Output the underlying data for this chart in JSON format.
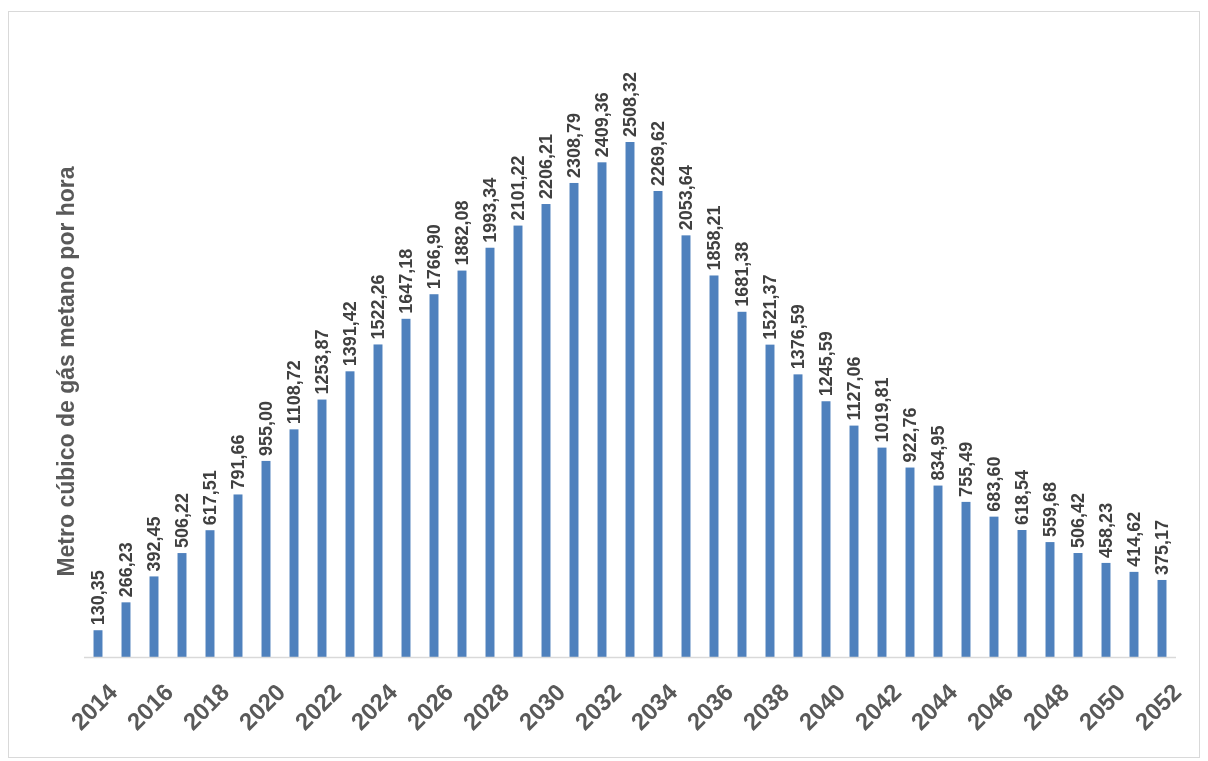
{
  "chart_data": {
    "type": "bar",
    "ylabel": "Metro cúbico de gás metano por hora",
    "categories": [
      "2014",
      null,
      "2016",
      null,
      "2018",
      null,
      "2020",
      null,
      "2022",
      null,
      "2024",
      null,
      "2026",
      null,
      "2028",
      null,
      "2030",
      null,
      "2032",
      null,
      "2034",
      null,
      "2036",
      null,
      "2038",
      null,
      "2040",
      null,
      "2042",
      null,
      "2044",
      null,
      "2046",
      null,
      "2048",
      null,
      "2050",
      null,
      "2052"
    ],
    "values": [
      130.35,
      266.23,
      392.45,
      506.22,
      617.51,
      791.66,
      955.0,
      1108.72,
      1253.87,
      1391.42,
      1522.26,
      1647.18,
      1766.9,
      1882.08,
      1993.34,
      2101.22,
      2206.21,
      2308.79,
      2409.36,
      2508.32,
      2269.62,
      2053.64,
      1858.21,
      1681.38,
      1521.37,
      1376.59,
      1245.59,
      1127.06,
      1019.81,
      922.76,
      834.95,
      755.49,
      683.6,
      618.54,
      559.68,
      506.42,
      458.23,
      414.62,
      375.17
    ],
    "value_labels": [
      "130,35",
      "266,23",
      "392,45",
      "506,22",
      "617,51",
      "791,66",
      "955,00",
      "1108,72",
      "1253,87",
      "1391,42",
      "1522,26",
      "1647,18",
      "1766,90",
      "1882,08",
      "1993,34",
      "2101,22",
      "2206,21",
      "2308,79",
      "2409,36",
      "2508,32",
      "2269,62",
      "2053,64",
      "1858,21",
      "1681,38",
      "1521,37",
      "1376,59",
      "1245,59",
      "1127,06",
      "1019,81",
      "922,76",
      "834,95",
      "755,49",
      "683,60",
      "618,54",
      "559,68",
      "506,42",
      "458,23",
      "414,62",
      "375,17"
    ],
    "color": "#4f81bd"
  }
}
